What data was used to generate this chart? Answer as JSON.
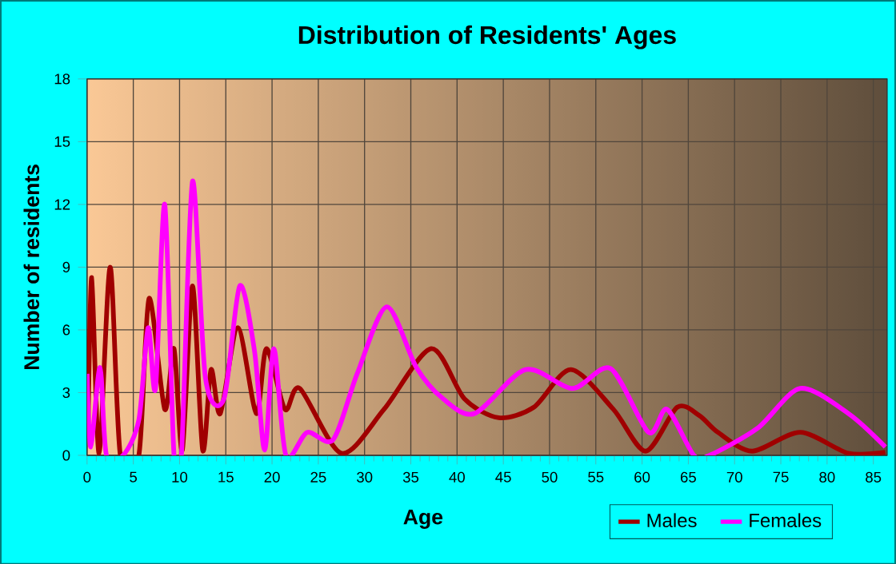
{
  "chart_data": {
    "type": "line",
    "title": "Distribution of Residents' Ages",
    "xlabel": "Age",
    "ylabel": "Number of residents",
    "xlim": [
      0,
      86.5
    ],
    "xticks": [
      0,
      5,
      10,
      15,
      20,
      25,
      30,
      35,
      40,
      45,
      50,
      55,
      60,
      65,
      70,
      75,
      80,
      85
    ],
    "ylim": [
      0,
      18
    ],
    "yticks": [
      0,
      3,
      6,
      9,
      12,
      15,
      18
    ],
    "grid": true,
    "legend": "bottom right",
    "marker": "none",
    "line_style": "solid",
    "series": [
      {
        "name": "Males",
        "color": "#a00000",
        "x": [
          0.1,
          0.5,
          1.3,
          2.5,
          3.6,
          5.6,
          6.7,
          8.4,
          9.4,
          10.3,
          11.4,
          12.5,
          13.4,
          14.4,
          16.3,
          18.3,
          19.4,
          21.4,
          23.0,
          27.5,
          32.1,
          37.2,
          40.8,
          44.5,
          48.3,
          52.3,
          56.9,
          60.4,
          63.8,
          66.2,
          68.2,
          71.9,
          77.1,
          82.3,
          86.3
        ],
        "values": [
          0.9,
          8.5,
          0.1,
          9.0,
          0,
          0,
          7.5,
          2.2,
          5.1,
          0.25,
          8.1,
          0.25,
          4.1,
          2.0,
          6.1,
          2.0,
          5.1,
          2.2,
          3.2,
          0.1,
          2.2,
          5.1,
          2.7,
          1.8,
          2.3,
          4.1,
          2.2,
          0.2,
          2.3,
          1.9,
          1.1,
          0.2,
          1.1,
          0.1,
          0.15
        ]
      },
      {
        "name": "Females",
        "color": "#ff00ff",
        "x": [
          0,
          0.4,
          1.4,
          2.1,
          3.9,
          5.6,
          6.6,
          7.4,
          8.4,
          9.4,
          10.2,
          11.4,
          12.8,
          14.8,
          16.5,
          18.1,
          19.2,
          20.2,
          21.5,
          23.8,
          26.6,
          29.2,
          32.4,
          35.6,
          38.5,
          41.9,
          47.4,
          52.5,
          56.6,
          60.7,
          62.7,
          65.6,
          67.3,
          72.5,
          77.1,
          82.3,
          86.3
        ],
        "values": [
          3.9,
          0.4,
          4.2,
          0,
          0,
          1.7,
          6.1,
          3.2,
          12.0,
          0,
          0,
          13.1,
          3.7,
          2.7,
          8.1,
          5.0,
          0.25,
          5.1,
          0,
          1.1,
          0.75,
          3.9,
          7.1,
          4.2,
          2.7,
          2.0,
          4.1,
          3.2,
          4.15,
          1.1,
          2.2,
          0,
          0,
          1.3,
          3.2,
          2.0,
          0.4
        ]
      }
    ]
  }
}
